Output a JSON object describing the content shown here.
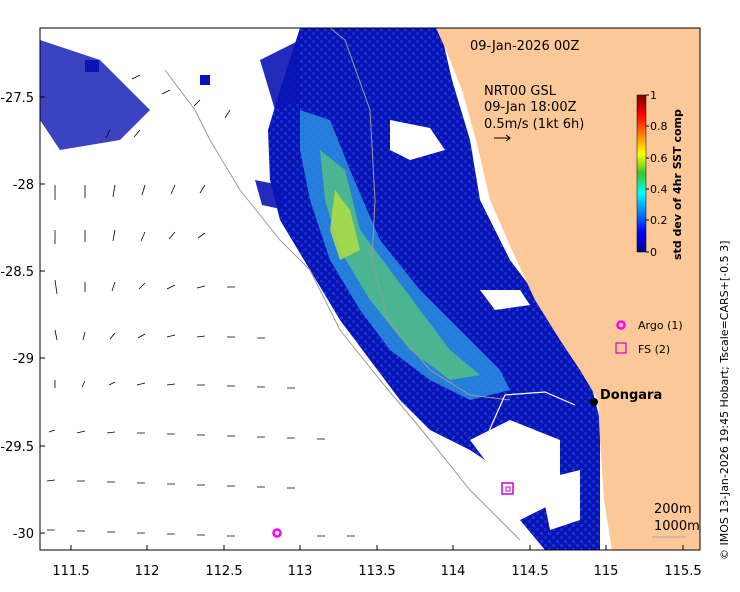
{
  "map": {
    "datetime_label": "09-Jan-2026 00Z",
    "overlay": {
      "line1": "NRT00 GSL",
      "line2": "09-Jan 18:00Z",
      "line3": "0.5m/s (1kt 6h)"
    },
    "place_label": "Dongara",
    "x_ticks": [
      "111.5",
      "112",
      "112.5",
      "113",
      "113.5",
      "114",
      "114.5",
      "115",
      "115.5"
    ],
    "y_ticks": [
      "-27.5",
      "-28",
      "-28.5",
      "-29",
      "-29.5",
      "-30"
    ],
    "legend": {
      "argo": "Argo (1)",
      "fs": "FS (2)"
    },
    "isobaths": {
      "a": "200m",
      "b": "1000m"
    },
    "colorbar": {
      "title": "std dev of 4hr SST comp",
      "ticks": [
        "1",
        "0.8",
        "0.6",
        "0.4",
        "0.2",
        "0"
      ]
    },
    "credit": "© IMOS 13-Jan-2026 19:45 Hobart; Tscale=CARS+[-0.5 3]",
    "colors": {
      "land": "#fcc898",
      "ocean_low": "#00008f",
      "argo": "#ff00ff",
      "fs": "#d000d0"
    }
  }
}
